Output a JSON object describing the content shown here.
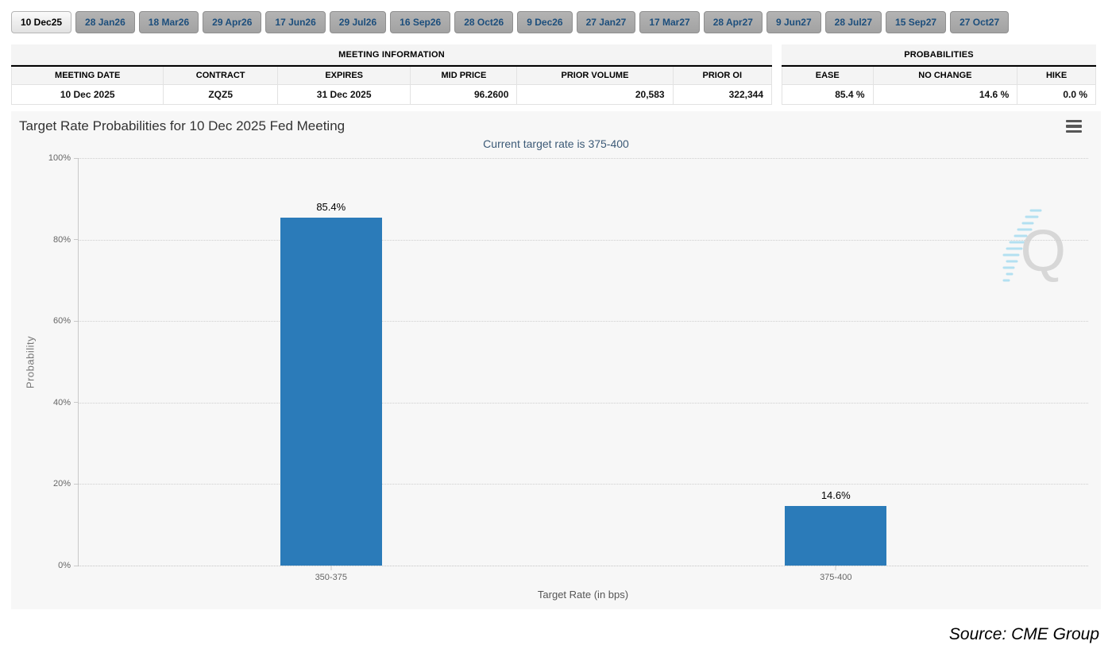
{
  "tabs": {
    "selected_index": 0,
    "items": [
      "10 Dec25",
      "28 Jan26",
      "18 Mar26",
      "29 Apr26",
      "17 Jun26",
      "29 Jul26",
      "16 Sep26",
      "28 Oct26",
      "9 Dec26",
      "27 Jan27",
      "17 Mar27",
      "28 Apr27",
      "9 Jun27",
      "28 Jul27",
      "15 Sep27",
      "27 Oct27"
    ]
  },
  "meeting_info": {
    "title": "MEETING INFORMATION",
    "columns": [
      "MEETING DATE",
      "CONTRACT",
      "EXPIRES",
      "MID PRICE",
      "PRIOR VOLUME",
      "PRIOR OI"
    ],
    "values": [
      "10 Dec 2025",
      "ZQZ5",
      "31 Dec 2025",
      "96.2600",
      "20,583",
      "322,344"
    ]
  },
  "probabilities": {
    "title": "PROBABILITIES",
    "columns": [
      "EASE",
      "NO CHANGE",
      "HIKE"
    ],
    "values": [
      "85.4 %",
      "14.6 %",
      "0.0 %"
    ]
  },
  "chart_data": {
    "type": "bar",
    "title": "Target Rate Probabilities for 10 Dec 2025 Fed Meeting",
    "subtitle": "Current target rate is 375-400",
    "categories": [
      "350-375",
      "375-400"
    ],
    "values": [
      85.4,
      14.6
    ],
    "bar_labels": [
      "85.4%",
      "14.6%"
    ],
    "xlabel": "Target Rate (in bps)",
    "ylabel": "Probability",
    "ylim": [
      0,
      100
    ],
    "yticks": [
      "0%",
      "20%",
      "40%",
      "60%",
      "80%",
      "100%"
    ],
    "bar_color": "#2b7bb9",
    "grid": "dotted",
    "legend": "none"
  },
  "watermark": {
    "letter": "Q"
  },
  "source": {
    "label": "Source: CME Group"
  }
}
